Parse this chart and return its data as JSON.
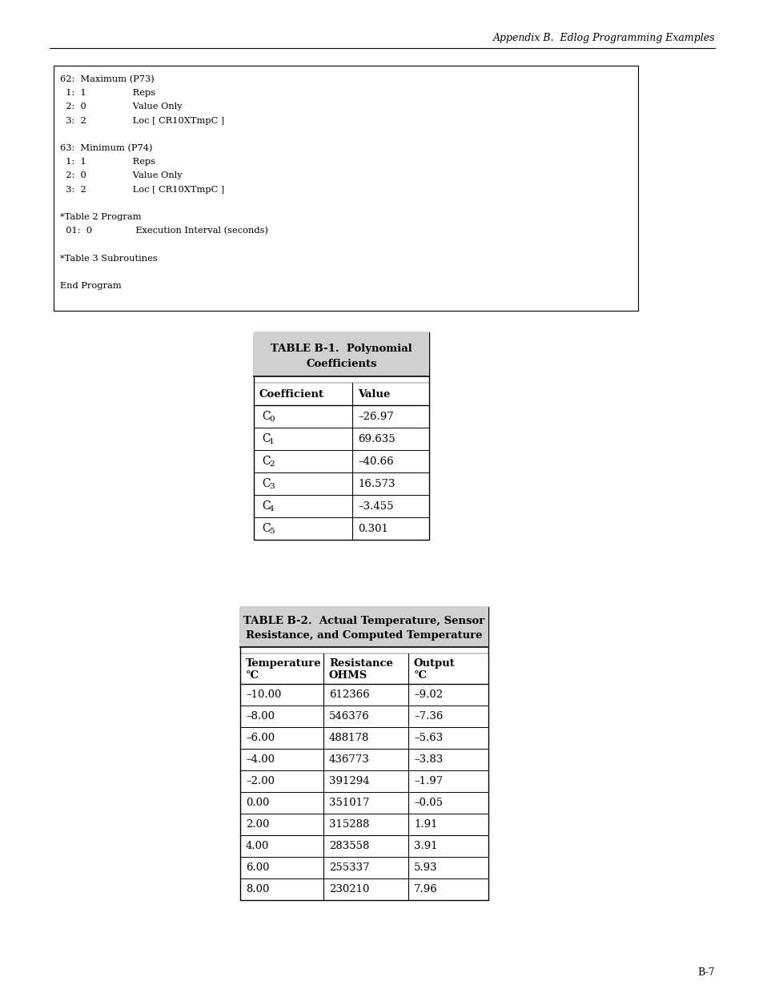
{
  "header_text": "Appendix B.  Edlog Programming Examples",
  "page_number": "B-7",
  "code_box_lines": [
    "62:  Maximum (P73)",
    "  1:  1                Reps",
    "  2:  0                Value Only",
    "  3:  2                Loc [ CR10XTmpC ]",
    "",
    "63:  Minimum (P74)",
    "  1:  1                Reps",
    "  2:  0                Value Only",
    "  3:  2                Loc [ CR10XTmpC ]",
    "",
    "*Table 2 Program",
    "  01:  0               Execution Interval (seconds)",
    "",
    "*Table 3 Subroutines",
    "",
    "End Program"
  ],
  "table1_title_line1": "TABLE B-1.  Polynomial",
  "table1_title_line2": "Coefficients",
  "table1_col_headers": [
    "Coefficient",
    "Value"
  ],
  "table1_rows": [
    [
      "–26.97"
    ],
    [
      "69.635"
    ],
    [
      "–40.66"
    ],
    [
      "16.573"
    ],
    [
      "–3.455"
    ],
    [
      "0.301"
    ]
  ],
  "table1_subscripts": [
    "0",
    "1",
    "2",
    "3",
    "4",
    "5"
  ],
  "table2_title_line1": "TABLE B-2.  Actual Temperature, Sensor",
  "table2_title_line2": "Resistance, and Computed Temperature",
  "table2_col_headers_line1": [
    "Temperature",
    "Resistance",
    "Output"
  ],
  "table2_col_headers_line2": [
    "°C",
    "OHMS",
    "°C"
  ],
  "table2_rows": [
    [
      "–10.00",
      "612366",
      "–9.02"
    ],
    [
      "–8.00",
      "546376",
      "–7.36"
    ],
    [
      "–6.00",
      "488178",
      "–5.63"
    ],
    [
      "–4.00",
      "436773",
      "–3.83"
    ],
    [
      "–2.00",
      "391294",
      "–1.97"
    ],
    [
      "0.00",
      "351017",
      "–0.05"
    ],
    [
      "2.00",
      "315288",
      "1.91"
    ],
    [
      "4.00",
      "283558",
      "3.91"
    ],
    [
      "6.00",
      "255337",
      "5.93"
    ],
    [
      "8.00",
      "230210",
      "7.96"
    ]
  ],
  "bg_color": "#ffffff",
  "text_color": "#000000"
}
